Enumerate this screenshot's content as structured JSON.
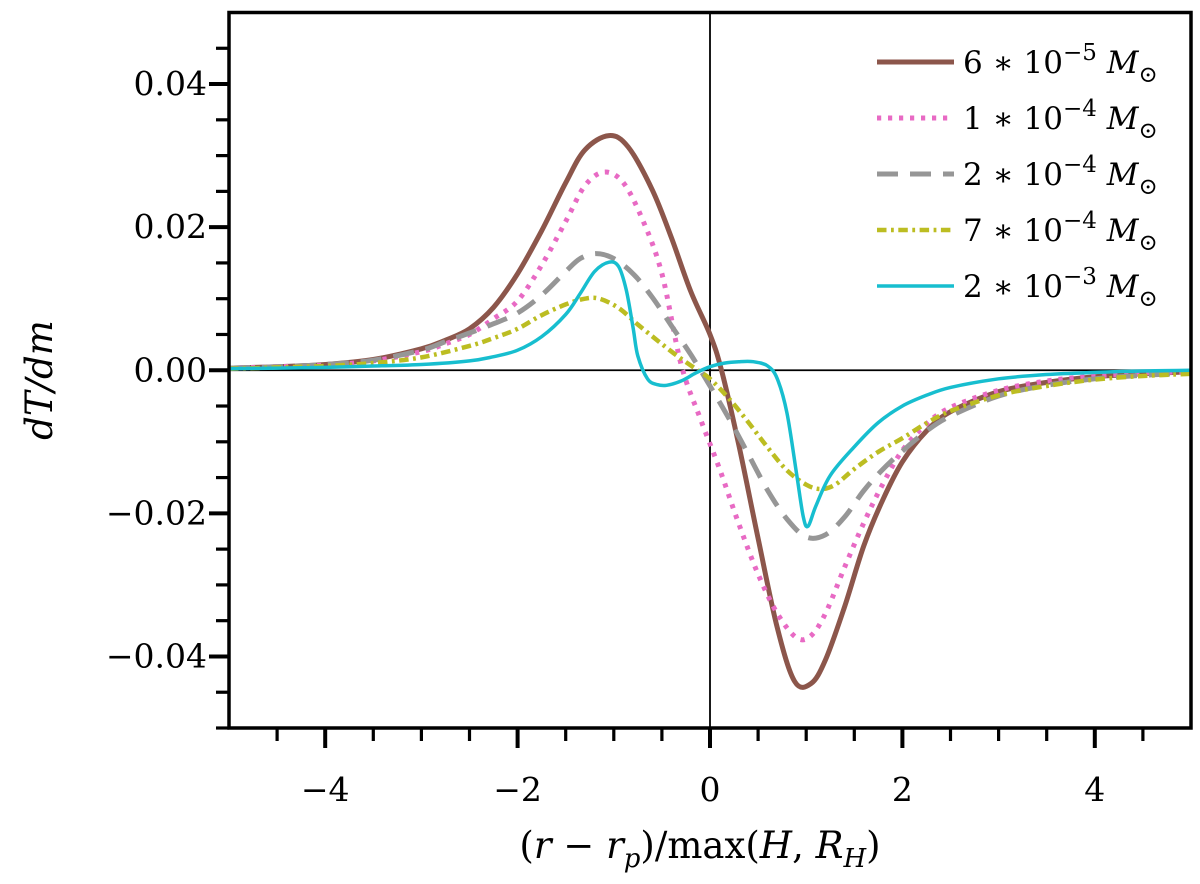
{
  "figure": {
    "background": "#ffffff",
    "axis_color": "#000000",
    "zero_lines": {
      "horizontal_at": 0,
      "vertical_at": 0
    }
  },
  "chart_data": {
    "type": "line",
    "title": "",
    "xlabel": "(r − r_p)/max(H, R_H)",
    "ylabel": "dT/dm",
    "xlim": [
      -5,
      5
    ],
    "ylim": [
      -0.05,
      0.05
    ],
    "grid": false,
    "legend_position": "upper right",
    "x_major_ticks": [
      {
        "value": -4,
        "label": "−4"
      },
      {
        "value": -2,
        "label": "−2"
      },
      {
        "value": 0,
        "label": "0"
      },
      {
        "value": 2,
        "label": "2"
      },
      {
        "value": 4,
        "label": "4"
      }
    ],
    "x_minor_step": 0.5,
    "y_major_ticks": [
      {
        "value": 0.04,
        "label": "0.04"
      },
      {
        "value": 0.02,
        "label": "0.02"
      },
      {
        "value": 0,
        "label": "0.00"
      },
      {
        "value": -0.02,
        "label": "−0.02"
      },
      {
        "value": -0.04,
        "label": "−0.04"
      }
    ],
    "y_minor_step": 0.005,
    "xlabel_parts": [
      {
        "t": "(",
        "it": false
      },
      {
        "t": "r",
        "it": true
      },
      {
        "t": " − ",
        "it": false
      },
      {
        "t": "r",
        "it": true
      },
      {
        "t": "p",
        "it": true,
        "sub": true
      },
      {
        "t": ")/",
        "it": false
      },
      {
        "t": "max(",
        "it": false
      },
      {
        "t": "H",
        "it": true
      },
      {
        "t": ", ",
        "it": false
      },
      {
        "t": "R",
        "it": true
      },
      {
        "t": "H",
        "it": true,
        "sub": true
      },
      {
        "t": ")",
        "it": false
      }
    ],
    "ylabel_parts": [
      {
        "t": "d",
        "it": true
      },
      {
        "t": "T",
        "it": true
      },
      {
        "t": "/",
        "it": true
      },
      {
        "t": "d",
        "it": true
      },
      {
        "t": "m",
        "it": true
      }
    ],
    "series": [
      {
        "name": "mass-6e-5",
        "label": "6 ∗ 10⁻⁵ M⊙",
        "label_parts": [
          {
            "t": "6 ∗ 10"
          },
          {
            "t": "−5",
            "sup": true
          },
          {
            "t": " M",
            "it": true
          },
          {
            "t": "⊙",
            "sub": true
          }
        ],
        "color": "#8c564b",
        "line_style": "solid",
        "line_width": 5,
        "x": [
          -5,
          -4.5,
          -4,
          -3.5,
          -3,
          -2.75,
          -2.5,
          -2.25,
          -2,
          -1.75,
          -1.5,
          -1.3,
          -1.05,
          -0.85,
          -0.6,
          -0.4,
          -0.2,
          0,
          0.12,
          0.3,
          0.5,
          0.7,
          0.88,
          1.05,
          1.2,
          1.4,
          1.6,
          1.8,
          2,
          2.25,
          2.5,
          3,
          3.5,
          4,
          4.5,
          5
        ],
        "y": [
          0.0003,
          0.0005,
          0.0008,
          0.0015,
          0.003,
          0.0042,
          0.0058,
          0.0088,
          0.0135,
          0.0195,
          0.0262,
          0.0308,
          0.0328,
          0.0312,
          0.0252,
          0.0185,
          0.011,
          0.005,
          0,
          -0.0105,
          -0.0235,
          -0.036,
          -0.0435,
          -0.0438,
          -0.0405,
          -0.033,
          -0.0245,
          -0.018,
          -0.0128,
          -0.0085,
          -0.0058,
          -0.003,
          -0.0017,
          -0.0009,
          -0.0005,
          -0.0002
        ]
      },
      {
        "name": "mass-1e-4",
        "label": "1 ∗ 10⁻⁴ M⊙",
        "label_parts": [
          {
            "t": "1 ∗ 10"
          },
          {
            "t": "−4",
            "sup": true
          },
          {
            "t": " M",
            "it": true
          },
          {
            "t": "⊙",
            "sub": true
          }
        ],
        "color": "#e86ac4",
        "line_style": "dotted",
        "line_width": 5,
        "x": [
          -5,
          -4.5,
          -4,
          -3.5,
          -3,
          -2.75,
          -2.5,
          -2.25,
          -2,
          -1.75,
          -1.5,
          -1.3,
          -1.1,
          -0.9,
          -0.7,
          -0.5,
          -0.3,
          -0.1,
          0.1,
          0.3,
          0.5,
          0.7,
          0.9,
          1.05,
          1.2,
          1.4,
          1.6,
          1.8,
          2,
          2.25,
          2.5,
          3,
          3.5,
          4,
          4.5,
          5
        ],
        "y": [
          0.0003,
          0.0005,
          0.0007,
          0.0013,
          0.0026,
          0.0037,
          0.005,
          0.0072,
          0.0097,
          0.0147,
          0.0208,
          0.0258,
          0.0277,
          0.0262,
          0.021,
          0.0135,
          0.0008,
          -0.0068,
          -0.0138,
          -0.0215,
          -0.0285,
          -0.034,
          -0.0374,
          -0.0371,
          -0.034,
          -0.0275,
          -0.0213,
          -0.0158,
          -0.0112,
          -0.0075,
          -0.0052,
          -0.0028,
          -0.0015,
          -0.0008,
          -0.0004,
          -0.0002
        ]
      },
      {
        "name": "mass-2e-4",
        "label": "2 ∗ 10⁻⁴ M⊙",
        "label_parts": [
          {
            "t": "2 ∗ 10"
          },
          {
            "t": "−4",
            "sup": true
          },
          {
            "t": " M",
            "it": true
          },
          {
            "t": "⊙",
            "sub": true
          }
        ],
        "color": "#969696",
        "line_style": "dashed",
        "line_width": 5,
        "x": [
          -5,
          -4.5,
          -4,
          -3.5,
          -3,
          -2.75,
          -2.5,
          -2.25,
          -2,
          -1.75,
          -1.5,
          -1.35,
          -1.18,
          -1,
          -0.8,
          -0.6,
          -0.4,
          -0.2,
          0,
          0.2,
          0.4,
          0.6,
          0.8,
          1,
          1.2,
          1.4,
          1.6,
          1.8,
          2,
          2.25,
          2.5,
          3,
          3.5,
          4,
          4.5,
          5
        ],
        "y": [
          0.0003,
          0.0005,
          0.0008,
          0.0014,
          0.0028,
          0.004,
          0.0052,
          0.0065,
          0.008,
          0.0105,
          0.0138,
          0.0156,
          0.0163,
          0.0156,
          0.0135,
          0.0102,
          0.0062,
          0.0022,
          -0.0022,
          -0.0068,
          -0.0118,
          -0.0168,
          -0.0208,
          -0.0233,
          -0.023,
          -0.0205,
          -0.0168,
          -0.0138,
          -0.0113,
          -0.0085,
          -0.0064,
          -0.0036,
          -0.0021,
          -0.0012,
          -0.0007,
          -0.0004
        ]
      },
      {
        "name": "mass-7e-4",
        "label": "7 ∗ 10⁻⁴ M⊙",
        "label_parts": [
          {
            "t": "7 ∗ 10"
          },
          {
            "t": "−4",
            "sup": true
          },
          {
            "t": " M",
            "it": true
          },
          {
            "t": "⊙",
            "sub": true
          }
        ],
        "color": "#bcbd22",
        "line_style": "dashdot",
        "line_width": 4.5,
        "x": [
          -5,
          -4.5,
          -4,
          -3.5,
          -3,
          -2.5,
          -2.25,
          -2,
          -1.75,
          -1.5,
          -1.3,
          -1.15,
          -0.95,
          -0.75,
          -0.55,
          -0.35,
          -0.15,
          0,
          0.2,
          0.4,
          0.6,
          0.8,
          1,
          1.15,
          1.3,
          1.5,
          1.75,
          2,
          2.25,
          2.5,
          3,
          3.5,
          4,
          4.5,
          5
        ],
        "y": [
          0.0002,
          0.0004,
          0.0006,
          0.001,
          0.0018,
          0.0034,
          0.0045,
          0.0058,
          0.0077,
          0.0092,
          0.01,
          0.01,
          0.0087,
          0.0064,
          0.0042,
          0.0021,
          0.0002,
          -0.0012,
          -0.004,
          -0.0073,
          -0.0108,
          -0.014,
          -0.016,
          -0.0166,
          -0.016,
          -0.0138,
          -0.0114,
          -0.0095,
          -0.0074,
          -0.0057,
          -0.0035,
          -0.0022,
          -0.0013,
          -0.0008,
          -0.0005
        ]
      },
      {
        "name": "mass-2e-3",
        "label": "2 ∗ 10⁻³ M⊙",
        "label_parts": [
          {
            "t": "2 ∗ 10"
          },
          {
            "t": "−3",
            "sup": true
          },
          {
            "t": " M",
            "it": true
          },
          {
            "t": "⊙",
            "sub": true
          }
        ],
        "color": "#17becf",
        "line_style": "solid",
        "line_width": 3.5,
        "x": [
          -5,
          -4.5,
          -4,
          -3.5,
          -3,
          -2.5,
          -2.25,
          -2,
          -1.75,
          -1.5,
          -1.35,
          -1.2,
          -1.05,
          -0.95,
          -0.87,
          -0.8,
          -0.75,
          -0.65,
          -0.55,
          -0.45,
          -0.3,
          -0.15,
          0,
          0.15,
          0.3,
          0.45,
          0.6,
          0.7,
          0.8,
          0.9,
          0.97,
          1.02,
          1.1,
          1.25,
          1.5,
          1.75,
          2,
          2.25,
          2.5,
          3,
          3.5,
          4,
          4.5,
          5
        ],
        "y": [
          0.0002,
          0.0003,
          0.0004,
          0.0006,
          0.0008,
          0.0013,
          0.0019,
          0.0028,
          0.0047,
          0.0078,
          0.0107,
          0.0138,
          0.0151,
          0.0145,
          0.0112,
          0.006,
          0.002,
          -0.0012,
          -0.002,
          -0.0021,
          -0.0015,
          -0.0004,
          0.0005,
          0.001,
          0.0012,
          0.0012,
          0.0006,
          -0.0012,
          -0.006,
          -0.0145,
          -0.0205,
          -0.0218,
          -0.019,
          -0.0147,
          -0.0107,
          -0.0073,
          -0.005,
          -0.0035,
          -0.0024,
          -0.0012,
          -0.0006,
          -0.0003,
          -0.0001,
          0
        ]
      }
    ]
  }
}
